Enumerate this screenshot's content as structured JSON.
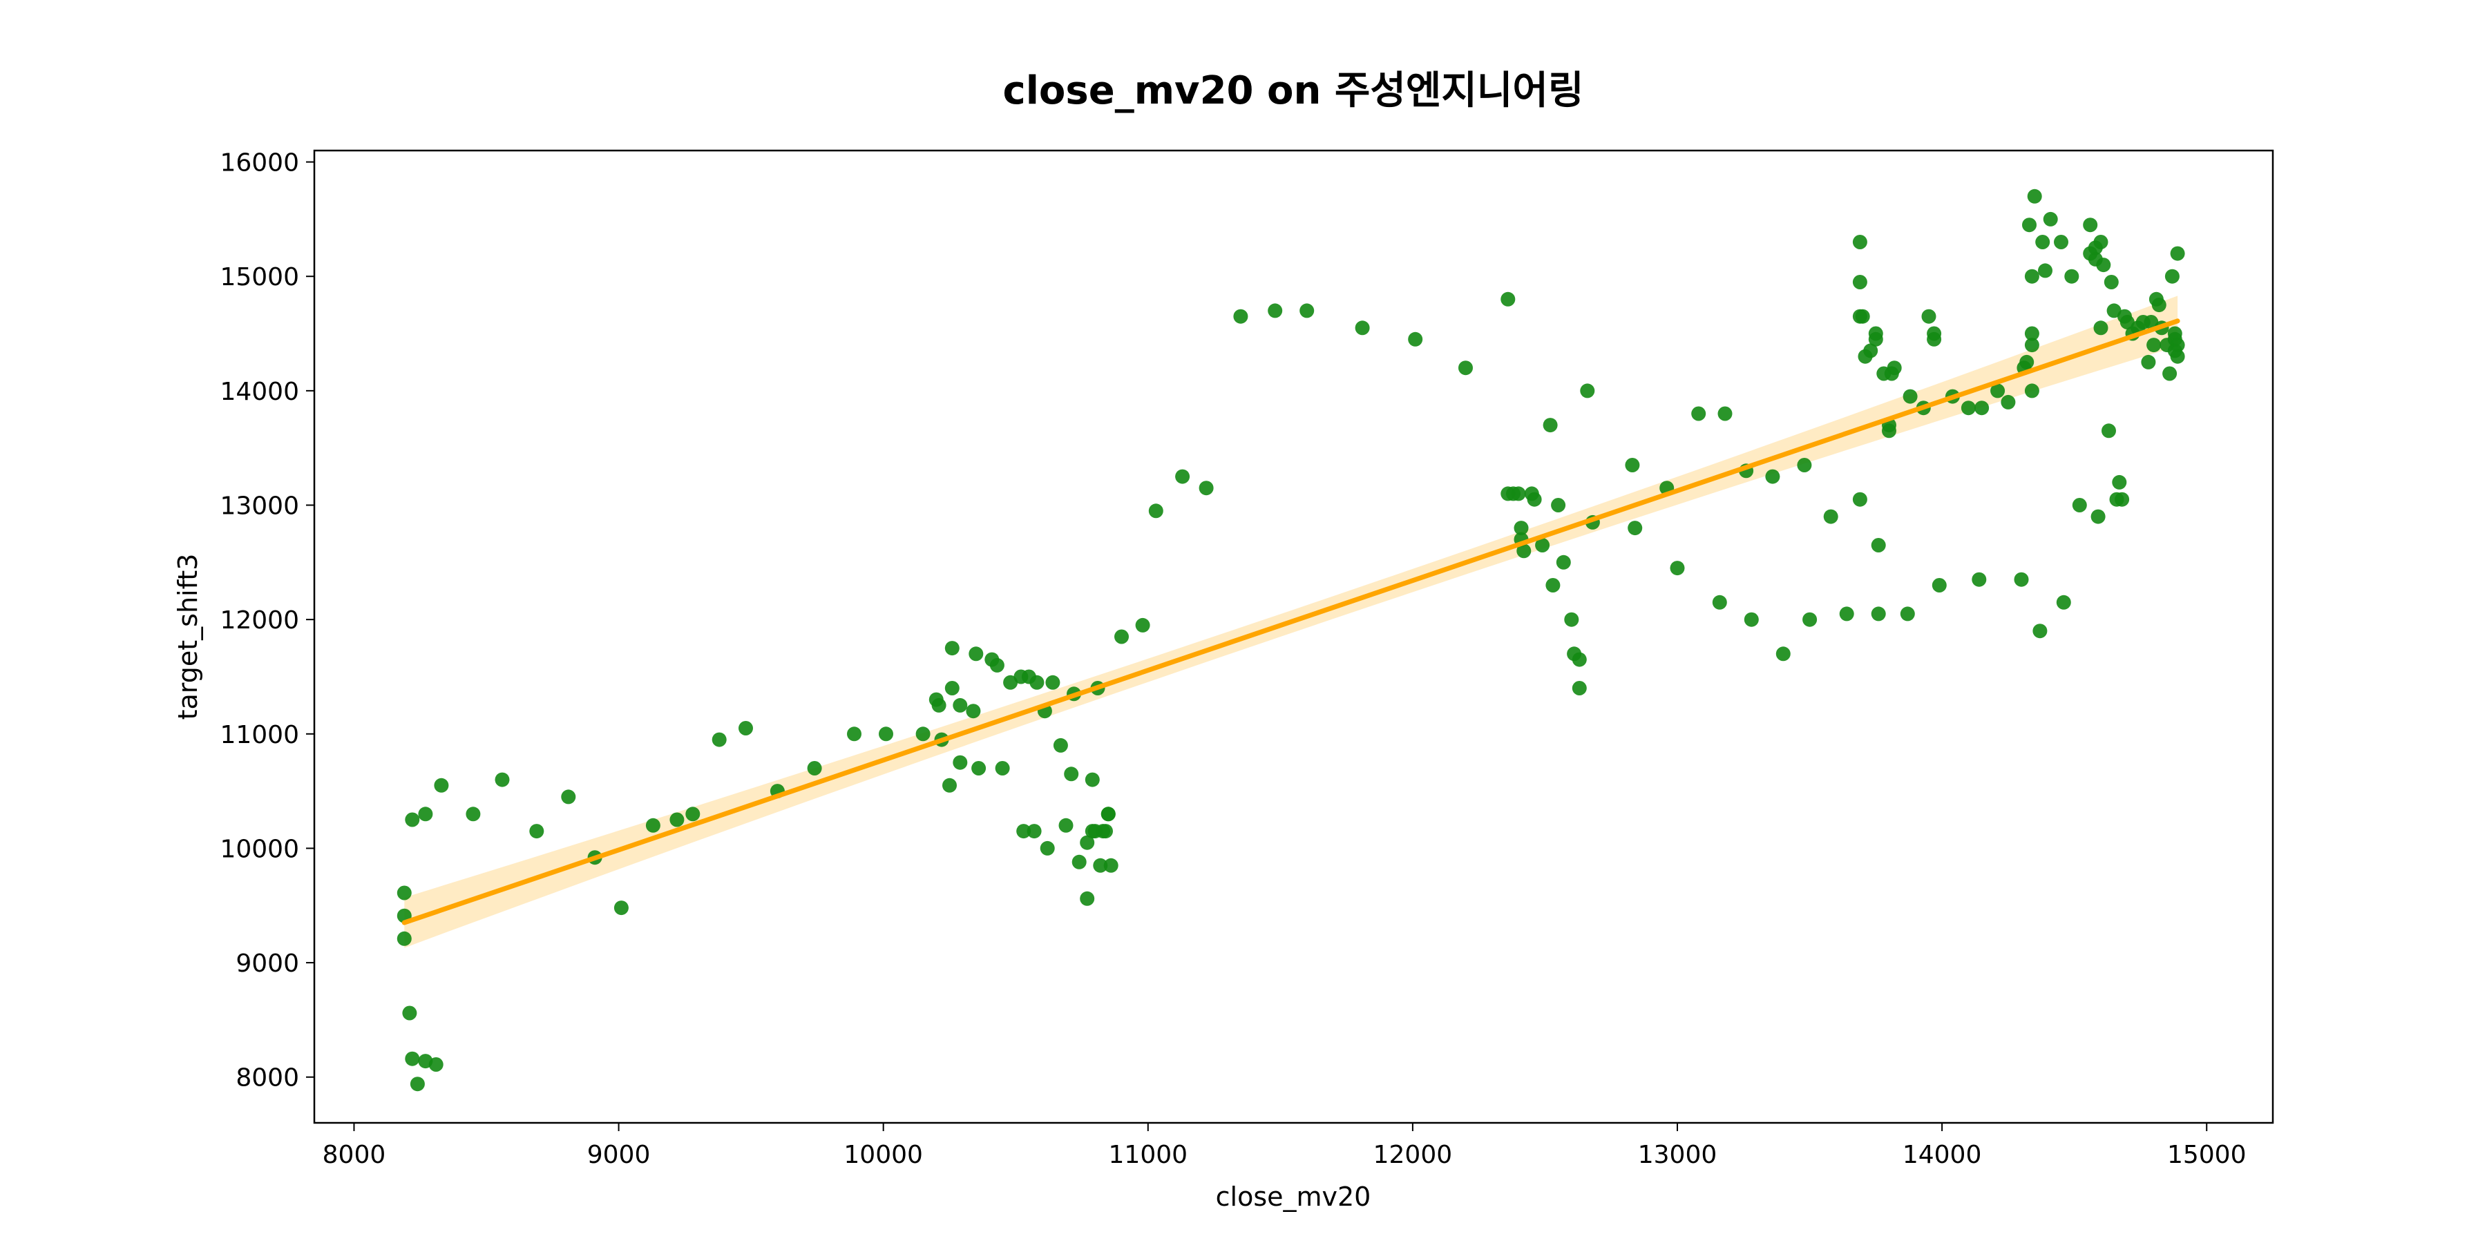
{
  "chart_data": {
    "type": "scatter",
    "title": "close_mv20 on 주성엔지니어링",
    "xlabel": "close_mv20",
    "ylabel": "target_shift3",
    "xlim": [
      7850,
      15250
    ],
    "ylim": [
      7600,
      16100
    ],
    "xticks": [
      8000,
      9000,
      10000,
      11000,
      12000,
      13000,
      14000,
      15000
    ],
    "yticks": [
      8000,
      9000,
      10000,
      11000,
      12000,
      13000,
      14000,
      15000,
      16000
    ],
    "grid": false,
    "colors": {
      "points": "#138a13",
      "regression": "#ffa500",
      "band": "#ffe4b0"
    },
    "regression": {
      "x": [
        8190,
        14890
      ],
      "y": [
        9350,
        14610
      ],
      "ci_halfwidth_at_ends": 220
    },
    "series": [
      {
        "points": [
          [
            8190,
            9610
          ],
          [
            8190,
            9410
          ],
          [
            8190,
            9210
          ],
          [
            8210,
            8560
          ],
          [
            8220,
            8160
          ],
          [
            8220,
            10250
          ],
          [
            8240,
            7940
          ],
          [
            8270,
            10300
          ],
          [
            8270,
            8140
          ],
          [
            8310,
            8110
          ],
          [
            8330,
            10550
          ],
          [
            8450,
            10300
          ],
          [
            8560,
            10600
          ],
          [
            8690,
            10150
          ],
          [
            8810,
            10450
          ],
          [
            8910,
            9920
          ],
          [
            9010,
            9480
          ],
          [
            9130,
            10200
          ],
          [
            9220,
            10250
          ],
          [
            9280,
            10300
          ],
          [
            9380,
            10950
          ],
          [
            9480,
            11050
          ],
          [
            9600,
            10500
          ],
          [
            9740,
            10700
          ],
          [
            9890,
            11000
          ],
          [
            10010,
            11000
          ],
          [
            10150,
            11000
          ],
          [
            10200,
            11300
          ],
          [
            10210,
            11250
          ],
          [
            10220,
            10950
          ],
          [
            10250,
            10550
          ],
          [
            10260,
            11750
          ],
          [
            10260,
            11400
          ],
          [
            10290,
            10750
          ],
          [
            10290,
            11250
          ],
          [
            10340,
            11200
          ],
          [
            10350,
            11700
          ],
          [
            10360,
            10700
          ],
          [
            10410,
            11650
          ],
          [
            10430,
            11600
          ],
          [
            10450,
            10700
          ],
          [
            10480,
            11450
          ],
          [
            10520,
            11500
          ],
          [
            10530,
            10150
          ],
          [
            10550,
            11500
          ],
          [
            10570,
            10150
          ],
          [
            10580,
            11450
          ],
          [
            10610,
            11200
          ],
          [
            10620,
            10000
          ],
          [
            10640,
            11450
          ],
          [
            10670,
            10900
          ],
          [
            10690,
            10200
          ],
          [
            10710,
            10650
          ],
          [
            10720,
            11350
          ],
          [
            10740,
            9880
          ],
          [
            10770,
            10050
          ],
          [
            10770,
            9560
          ],
          [
            10790,
            10600
          ],
          [
            10790,
            10150
          ],
          [
            10800,
            10150
          ],
          [
            10810,
            11400
          ],
          [
            10820,
            9850
          ],
          [
            10830,
            10150
          ],
          [
            10840,
            10150
          ],
          [
            10850,
            10300
          ],
          [
            10850,
            10300
          ],
          [
            10860,
            9850
          ],
          [
            10900,
            11850
          ],
          [
            10980,
            11950
          ],
          [
            11030,
            12950
          ],
          [
            11130,
            13250
          ],
          [
            11220,
            13150
          ],
          [
            11350,
            14650
          ],
          [
            11480,
            14700
          ],
          [
            11600,
            14700
          ],
          [
            11810,
            14550
          ],
          [
            12010,
            14450
          ],
          [
            12200,
            14200
          ],
          [
            12360,
            14800
          ],
          [
            12360,
            13100
          ],
          [
            12380,
            13100
          ],
          [
            12400,
            13100
          ],
          [
            12410,
            12700
          ],
          [
            12410,
            12800
          ],
          [
            12420,
            12600
          ],
          [
            12450,
            13100
          ],
          [
            12460,
            13050
          ],
          [
            12490,
            12650
          ],
          [
            12520,
            13700
          ],
          [
            12530,
            12300
          ],
          [
            12550,
            13000
          ],
          [
            12570,
            12500
          ],
          [
            12600,
            12000
          ],
          [
            12610,
            11700
          ],
          [
            12630,
            11650
          ],
          [
            12630,
            11400
          ],
          [
            12660,
            14000
          ],
          [
            12680,
            12850
          ],
          [
            12830,
            13350
          ],
          [
            12840,
            12800
          ],
          [
            12960,
            13150
          ],
          [
            13000,
            12450
          ],
          [
            13080,
            13800
          ],
          [
            13160,
            12150
          ],
          [
            13180,
            13800
          ],
          [
            13260,
            13300
          ],
          [
            13280,
            12000
          ],
          [
            13360,
            13250
          ],
          [
            13400,
            11700
          ],
          [
            13480,
            13350
          ],
          [
            13500,
            12000
          ],
          [
            13580,
            12900
          ],
          [
            13640,
            12050
          ],
          [
            13690,
            13050
          ],
          [
            13690,
            15300
          ],
          [
            13690,
            14950
          ],
          [
            13690,
            14650
          ],
          [
            13700,
            14650
          ],
          [
            13710,
            14300
          ],
          [
            13730,
            14350
          ],
          [
            13750,
            14500
          ],
          [
            13750,
            14450
          ],
          [
            13760,
            12650
          ],
          [
            13760,
            12050
          ],
          [
            13780,
            14150
          ],
          [
            13800,
            13700
          ],
          [
            13800,
            13650
          ],
          [
            13810,
            14150
          ],
          [
            13820,
            14200
          ],
          [
            13870,
            12050
          ],
          [
            13880,
            13950
          ],
          [
            13930,
            13850
          ],
          [
            13950,
            14650
          ],
          [
            13970,
            14450
          ],
          [
            13970,
            14500
          ],
          [
            13990,
            12300
          ],
          [
            14040,
            13950
          ],
          [
            14100,
            13850
          ],
          [
            14140,
            12350
          ],
          [
            14150,
            13850
          ],
          [
            14210,
            14000
          ],
          [
            14250,
            13900
          ],
          [
            14300,
            12350
          ],
          [
            14310,
            14200
          ],
          [
            14320,
            14250
          ],
          [
            14330,
            15450
          ],
          [
            14340,
            14000
          ],
          [
            14340,
            14400
          ],
          [
            14340,
            14500
          ],
          [
            14340,
            15000
          ],
          [
            14350,
            15700
          ],
          [
            14370,
            11900
          ],
          [
            14380,
            15300
          ],
          [
            14390,
            15050
          ],
          [
            14410,
            15500
          ],
          [
            14450,
            15300
          ],
          [
            14460,
            12150
          ],
          [
            14490,
            15000
          ],
          [
            14520,
            13000
          ],
          [
            14560,
            15450
          ],
          [
            14560,
            15200
          ],
          [
            14580,
            15150
          ],
          [
            14580,
            15250
          ],
          [
            14590,
            12900
          ],
          [
            14600,
            15300
          ],
          [
            14600,
            14550
          ],
          [
            14610,
            15100
          ],
          [
            14630,
            13650
          ],
          [
            14640,
            14950
          ],
          [
            14650,
            14700
          ],
          [
            14660,
            13050
          ],
          [
            14670,
            13200
          ],
          [
            14680,
            13050
          ],
          [
            14690,
            14650
          ],
          [
            14700,
            14600
          ],
          [
            14720,
            14500
          ],
          [
            14740,
            14550
          ],
          [
            14760,
            14600
          ],
          [
            14780,
            14250
          ],
          [
            14790,
            14600
          ],
          [
            14800,
            14400
          ],
          [
            14810,
            14800
          ],
          [
            14820,
            14750
          ],
          [
            14830,
            14550
          ],
          [
            14850,
            14400
          ],
          [
            14860,
            14150
          ],
          [
            14870,
            15000
          ],
          [
            14880,
            14500
          ],
          [
            14880,
            14450
          ],
          [
            14880,
            14350
          ],
          [
            14890,
            14300
          ],
          [
            14890,
            15200
          ],
          [
            14890,
            14400
          ]
        ]
      }
    ]
  }
}
